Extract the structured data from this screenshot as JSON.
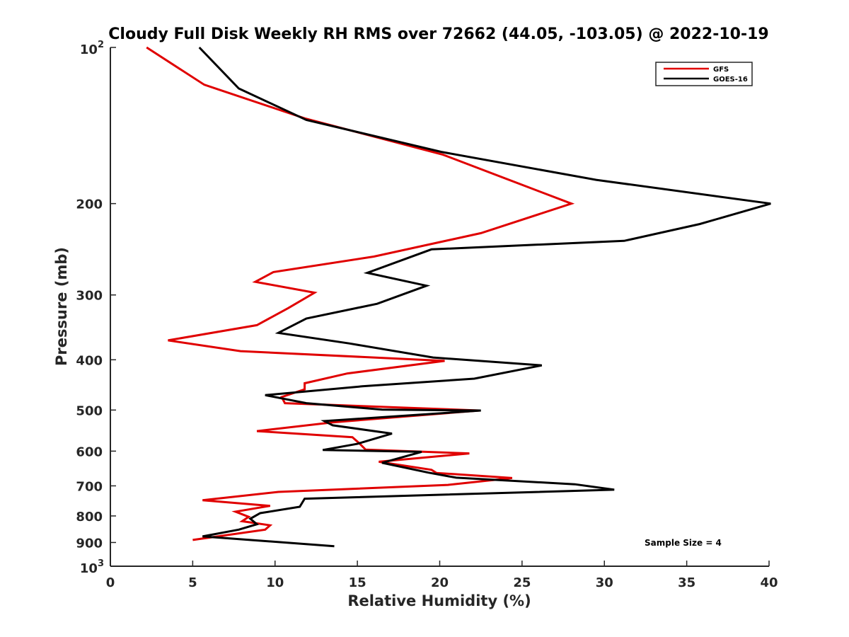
{
  "chart_data": {
    "type": "line",
    "title": "Cloudy Full Disk Weekly RH RMS over 72662 (44.05, -103.05) @ 2022-10-19",
    "xlabel": "Relative Humidity (%)",
    "ylabel": "Pressure (mb)",
    "xlim": [
      0,
      40
    ],
    "ylim": [
      100,
      1000
    ],
    "y_scale": "log",
    "y_reversed": true,
    "x_ticks": [
      {
        "value": 0,
        "label": "0"
      },
      {
        "value": 5,
        "label": "5"
      },
      {
        "value": 10,
        "label": "10"
      },
      {
        "value": 15,
        "label": "15"
      },
      {
        "value": 20,
        "label": "20"
      },
      {
        "value": 25,
        "label": "25"
      },
      {
        "value": 30,
        "label": "30"
      },
      {
        "value": 35,
        "label": "35"
      },
      {
        "value": 40,
        "label": "40"
      }
    ],
    "y_ticks": [
      {
        "value": 100,
        "base": "10",
        "exp": "2"
      },
      {
        "value": 200,
        "label": "200"
      },
      {
        "value": 300,
        "label": "300"
      },
      {
        "value": 400,
        "label": "400"
      },
      {
        "value": 500,
        "label": "500"
      },
      {
        "value": 600,
        "label": "600"
      },
      {
        "value": 700,
        "label": "700"
      },
      {
        "value": 800,
        "label": "800"
      },
      {
        "value": 900,
        "label": "900"
      },
      {
        "value": 1000,
        "base": "10",
        "exp": "3"
      }
    ],
    "grid": false,
    "legend_position": "top-right",
    "annotation": "Sample Size = 4",
    "series": [
      {
        "name": "GFS",
        "color": "#e00000",
        "x": [
          2.2,
          5.7,
          11.8,
          20.2,
          28.0,
          22.5,
          16.0,
          9.9,
          8.8,
          12.4,
          10.8,
          8.9,
          3.5,
          7.9,
          20.3,
          14.4,
          11.8,
          11.8,
          10.4,
          10.6,
          22.4,
          13.5,
          8.9,
          14.7,
          15.1,
          15.5,
          21.8,
          16.3,
          19.5,
          19.8,
          24.4,
          20.5,
          10.2,
          5.6,
          9.7,
          7.6,
          8.4,
          8.0,
          9.7,
          9.4,
          5.0
        ],
        "y": [
          100,
          118,
          137,
          161,
          200,
          228,
          253,
          271,
          283,
          297,
          318,
          343,
          367,
          385,
          402,
          425,
          444,
          456,
          472,
          485,
          501,
          528,
          549,
          564,
          579,
          596,
          606,
          629,
          652,
          661,
          676,
          697,
          719,
          746,
          765,
          785,
          803,
          819,
          834,
          850,
          890
        ]
      },
      {
        "name": "GOES-16",
        "color": "#000000",
        "x": [
          5.4,
          7.8,
          11.9,
          20.1,
          29.5,
          40.1,
          35.8,
          31.2,
          19.5,
          15.6,
          19.2,
          16.2,
          11.9,
          10.2,
          14.5,
          19.6,
          26.2,
          22.1,
          15.3,
          9.4,
          11.9,
          16.5,
          22.5,
          13.0,
          13.5,
          17.1,
          15.0,
          12.9,
          18.9,
          16.5,
          19.3,
          21.0,
          28.2,
          30.6,
          11.8,
          11.5,
          9.1,
          8.5,
          8.9,
          7.8,
          5.6,
          13.6
        ],
        "y": [
          100,
          120,
          138,
          159,
          180,
          200,
          219,
          236,
          245,
          272,
          288,
          312,
          333,
          355,
          372,
          396,
          410,
          435,
          450,
          468,
          485,
          499,
          501,
          525,
          535,
          555,
          581,
          597,
          602,
          632,
          660,
          675,
          695,
          712,
          741,
          768,
          790,
          810,
          830,
          850,
          876,
          915
        ]
      }
    ]
  }
}
